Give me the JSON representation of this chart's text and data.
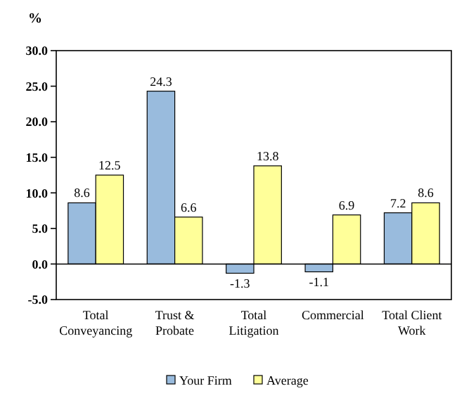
{
  "chart_data": {
    "type": "bar",
    "ylabel": "%",
    "categories": [
      "Total Conveyancing",
      "Trust & Probate",
      "Total Litigation",
      "Commercial",
      "Total Client Work"
    ],
    "series": [
      {
        "name": "Your Firm",
        "color": "#99bbdd",
        "values": [
          8.6,
          24.3,
          -1.3,
          -1.1,
          7.2
        ]
      },
      {
        "name": "Average",
        "color": "#ffff99",
        "values": [
          12.5,
          6.6,
          13.8,
          6.9,
          8.6
        ]
      }
    ],
    "ylim": [
      -5,
      30
    ],
    "yticks": [
      {
        "value": -5,
        "label": "-5.0"
      },
      {
        "value": 0,
        "label": "0.0"
      },
      {
        "value": 5,
        "label": "5.0"
      },
      {
        "value": 10,
        "label": "10.0"
      },
      {
        "value": 15,
        "label": "15.0"
      },
      {
        "value": 20,
        "label": "20.0"
      },
      {
        "value": 25,
        "label": "25.0"
      },
      {
        "value": 30,
        "label": "30.0"
      }
    ],
    "data_labels": true,
    "legend": "bottom"
  }
}
